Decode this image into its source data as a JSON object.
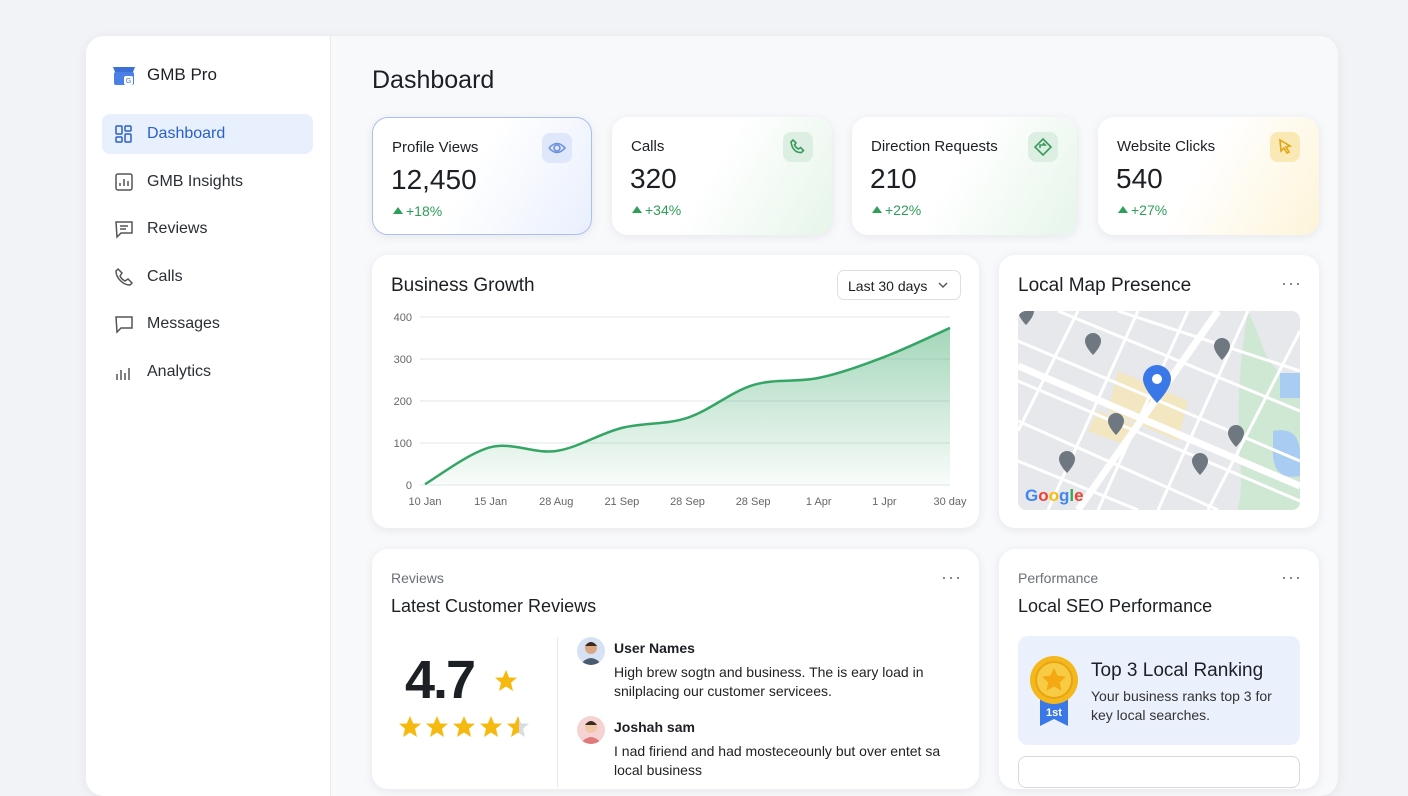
{
  "brand": "GMB Pro",
  "nav": {
    "items": [
      "Dashboard",
      "GMB Insights",
      "Reviews",
      "Calls",
      "Messages",
      "Analytics"
    ],
    "active": 0
  },
  "page_title": "Dashboard",
  "stats": [
    {
      "label": "Profile Views",
      "value": "12,450",
      "change": "+18%"
    },
    {
      "label": "Calls",
      "value": "320",
      "change": "+34%"
    },
    {
      "label": "Direction Requests",
      "value": "210",
      "change": "+22%"
    },
    {
      "label": "Website Clicks",
      "value": "540",
      "change": "+27%"
    }
  ],
  "chart_data": {
    "type": "area",
    "title": "Business Growth",
    "filter": "Last 30 days",
    "categories": [
      "10 Jan",
      "15 Jan",
      "28 Aug",
      "21 Sep",
      "28 Sep",
      "28 Sep",
      "1 Apr",
      "1 Jpr",
      "30 day"
    ],
    "series": [
      {
        "name": "Growth",
        "color": "#34a564",
        "values": [
          2,
          90,
          81,
          136,
          160,
          238,
          255,
          305,
          374
        ]
      }
    ],
    "ylim": [
      0,
      400
    ],
    "yticks": [
      0,
      100,
      200,
      300,
      400
    ],
    "grid": true
  },
  "map": {
    "title": "Local Map Presence",
    "logo": "Google"
  },
  "reviews": {
    "label": "Reviews",
    "title": "Latest Customer Reviews",
    "rating": "4.7",
    "items": [
      {
        "name": "User Names",
        "text": "High brew sogtn and business. The is eary load in snilplacing our customer servicees."
      },
      {
        "name": "Joshah sam",
        "text": "I nad firiend and had mosteceounly but over entet sa local business"
      }
    ]
  },
  "performance": {
    "label": "Performance",
    "title": "Local SEO Performance",
    "badge": "1st",
    "heading": "Top 3 Local Ranking",
    "text": "Your business ranks top 3 for key local searches."
  }
}
